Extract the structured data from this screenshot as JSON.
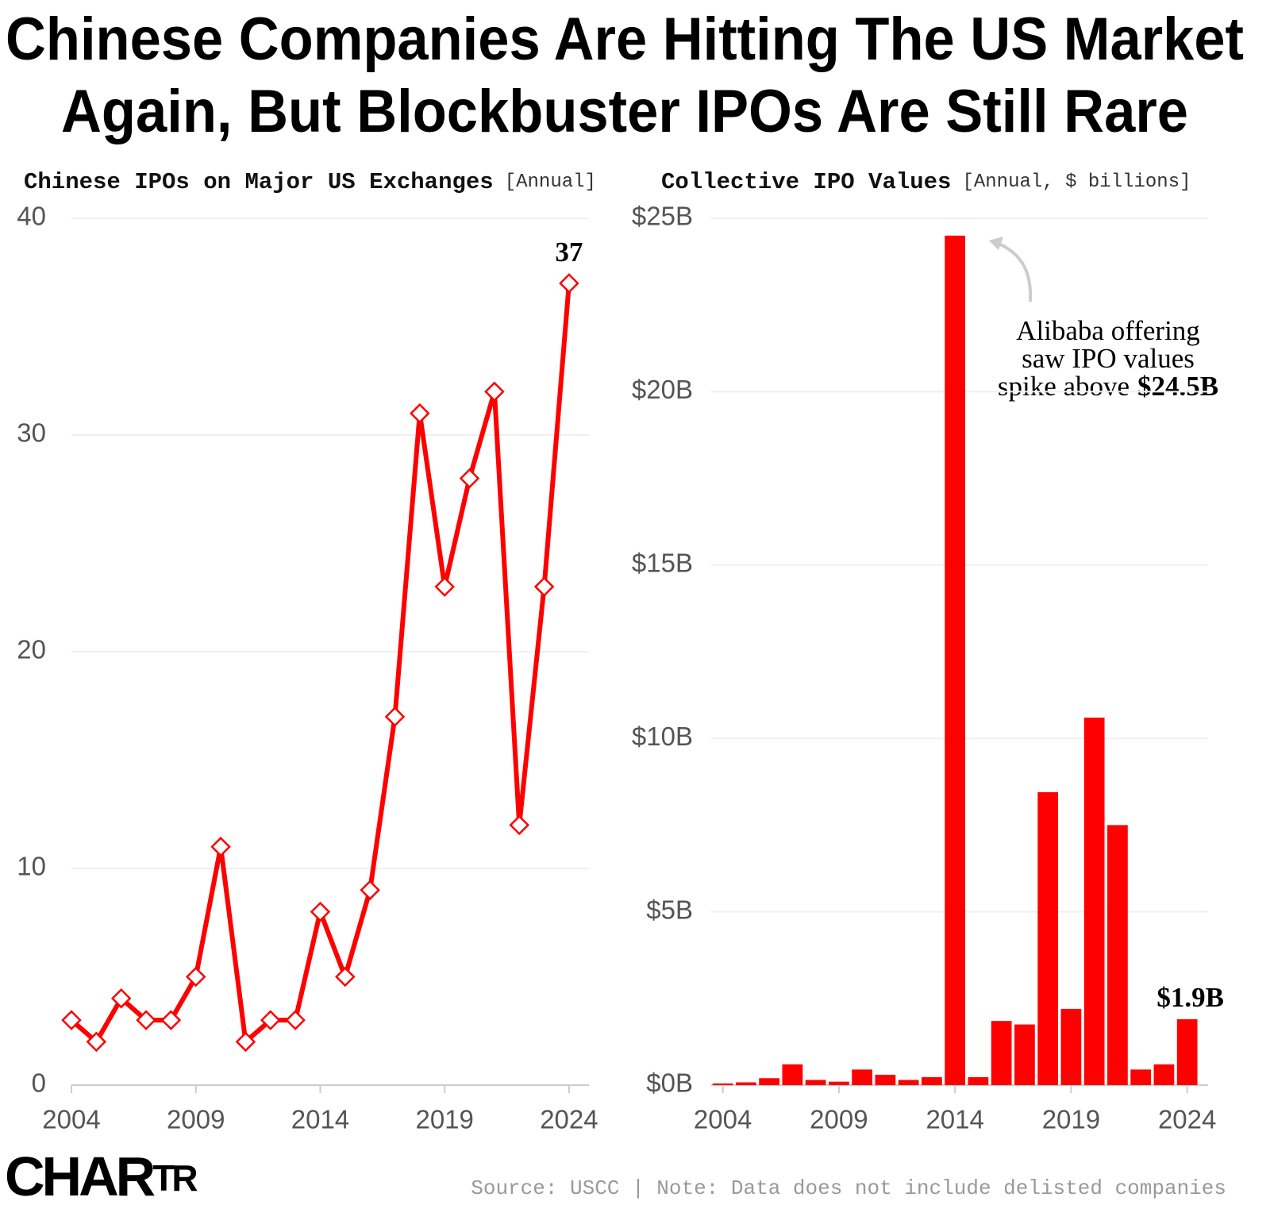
{
  "header": {
    "title_lines": [
      "Chinese Companies Are Hitting The US Market",
      "Again, But Blockbuster IPOs Are Still Rare"
    ]
  },
  "chart_data": [
    {
      "type": "line",
      "title": "Chinese IPOs on Major US Exchanges",
      "title_note": "[Annual]",
      "x": [
        2004,
        2005,
        2006,
        2007,
        2008,
        2009,
        2010,
        2011,
        2012,
        2013,
        2014,
        2015,
        2016,
        2017,
        2018,
        2019,
        2020,
        2021,
        2022,
        2023,
        2024
      ],
      "values": [
        3,
        2,
        4,
        3,
        3,
        5,
        11,
        2,
        3,
        3,
        8,
        5,
        9,
        17,
        31,
        23,
        28,
        32,
        12,
        23,
        37
      ],
      "color": "#ff0000",
      "xlim": [
        2004,
        2024.8
      ],
      "xticks": [
        2004,
        2009,
        2014,
        2019,
        2024
      ],
      "ylim": [
        0,
        40
      ],
      "yticks": [
        0,
        10,
        20,
        30,
        40
      ],
      "grid": true
    },
    {
      "type": "bar",
      "title": "Collective IPO Values",
      "title_note": "[Annual, $ billions]",
      "x": [
        2004,
        2005,
        2006,
        2007,
        2008,
        2009,
        2010,
        2011,
        2012,
        2013,
        2014,
        2015,
        2016,
        2017,
        2018,
        2019,
        2020,
        2021,
        2022,
        2023,
        2024
      ],
      "values": [
        0.05,
        0.08,
        0.2,
        0.6,
        0.15,
        0.1,
        0.45,
        0.3,
        0.15,
        0.23,
        24.5,
        0.23,
        1.85,
        1.75,
        8.45,
        2.2,
        10.6,
        7.5,
        0.45,
        0.6,
        1.9
      ],
      "value_labels": [
        null,
        null,
        null,
        null,
        null,
        null,
        null,
        null,
        null,
        null,
        null,
        null,
        null,
        null,
        null,
        null,
        null,
        null,
        null,
        null,
        "$1.9B"
      ],
      "color": "#ff0000",
      "xlim": [
        2003.5,
        2024.9
      ],
      "xticks": [
        2004,
        2009,
        2014,
        2019,
        2024
      ],
      "ylim": [
        0,
        25
      ],
      "yticks": [
        {
          "value": 0,
          "label": "$0B"
        },
        {
          "value": 5,
          "label": "$5B"
        },
        {
          "value": 10,
          "label": "$10B"
        },
        {
          "value": 15,
          "label": "$15B"
        },
        {
          "value": 20,
          "label": "$20B"
        },
        {
          "value": 25,
          "label": "$25B"
        }
      ],
      "grid": true,
      "annotation_lines": [
        "Alibaba offering",
        "saw IPO values",
        "spike above"
      ],
      "annotation_highlight": "$24.5B"
    }
  ],
  "footer": {
    "brand": [
      "CHAR",
      "TR"
    ],
    "source": "Source: USCC | Note: Data does not include delisted companies"
  }
}
